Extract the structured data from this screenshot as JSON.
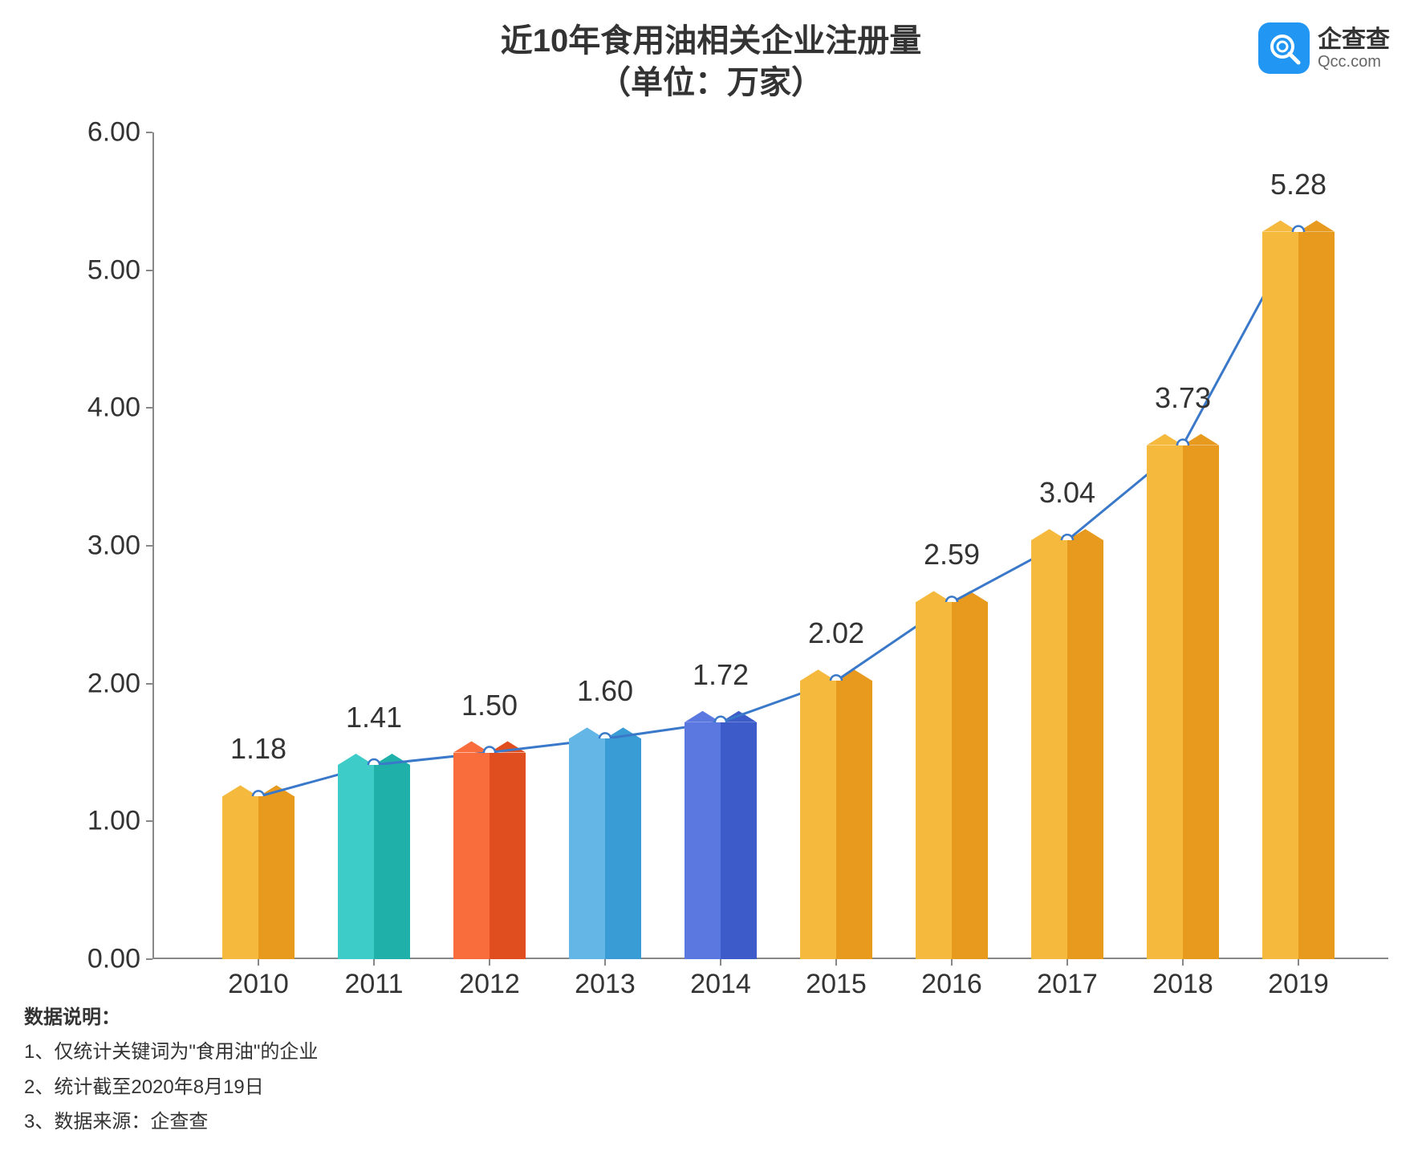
{
  "chart": {
    "type": "bar+line",
    "title_line1": "近10年食用油相关企业注册量",
    "title_line2": "（单位：万家）",
    "title_fontsize": 40,
    "title_color": "#333333",
    "background_color": "#ffffff",
    "categories": [
      "2010",
      "2011",
      "2012",
      "2013",
      "2014",
      "2015",
      "2016",
      "2017",
      "2018",
      "2019"
    ],
    "values": [
      1.18,
      1.41,
      1.5,
      1.6,
      1.72,
      2.02,
      2.59,
      3.04,
      3.73,
      5.28
    ],
    "value_labels": [
      "1.18",
      "1.41",
      "1.50",
      "1.60",
      "1.72",
      "2.02",
      "2.59",
      "3.04",
      "3.73",
      "5.28"
    ],
    "bar_colors_left": [
      "#f5b93e",
      "#3dccc7",
      "#f96c3c",
      "#63b6e6",
      "#5a78e0",
      "#f5b93e",
      "#f5b93e",
      "#f5b93e",
      "#f5b93e",
      "#f5b93e"
    ],
    "bar_colors_right": [
      "#e89a1f",
      "#1fb0aa",
      "#e04e1f",
      "#3a9cd4",
      "#3d5cc9",
      "#e89a1f",
      "#e89a1f",
      "#e89a1f",
      "#e89a1f",
      "#e89a1f"
    ],
    "bar_total_width": 90,
    "line_color": "#3a78c9",
    "line_width": 3,
    "marker_radius": 7,
    "marker_fill": "#ffffff",
    "marker_stroke": "#3a78c9",
    "marker_stroke_width": 2.5,
    "ylim": [
      0.0,
      6.0
    ],
    "ytick_step": 1.0,
    "yticks": [
      "0.00",
      "1.00",
      "2.00",
      "3.00",
      "4.00",
      "5.00",
      "6.00"
    ],
    "x_label_fontsize": 34,
    "y_label_fontsize": 34,
    "value_label_fontsize": 36,
    "axis_color": "#888888",
    "value_label_offset": 38
  },
  "logo": {
    "icon_bg": "#2196f3",
    "icon_fg": "#ffffff",
    "text_cn": "企查查",
    "text_en": "Qcc.com"
  },
  "footer": {
    "heading": "数据说明：",
    "note1": "1、仅统计关键词为\"食用油\"的企业",
    "note2": "2、统计截至2020年8月19日",
    "note3": "3、数据来源：企查查"
  }
}
